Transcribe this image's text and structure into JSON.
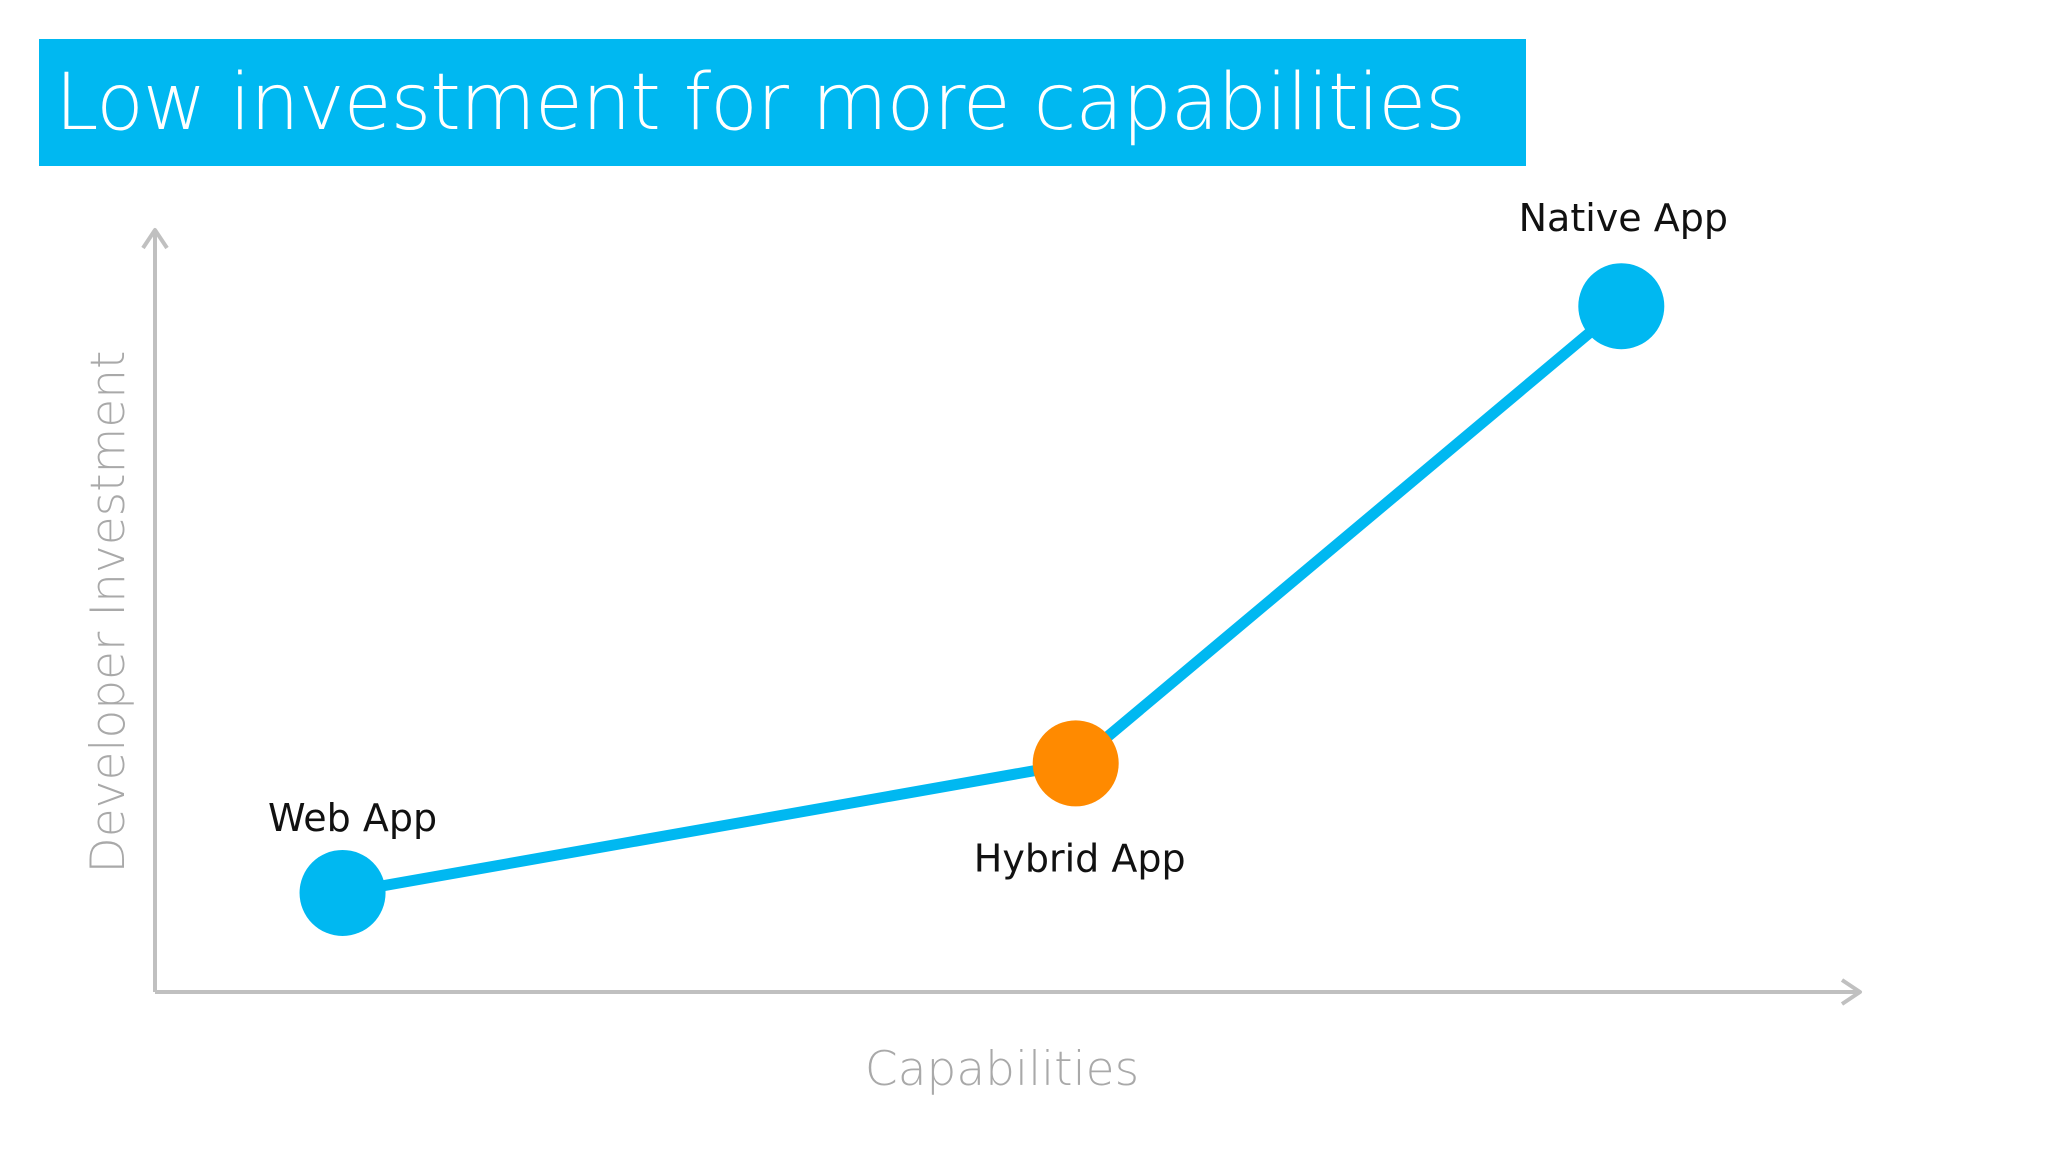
{
  "slide": {
    "title": "Low investment for more capabilities"
  },
  "chart_data": {
    "type": "line",
    "title": "Low investment for more capabilities",
    "xlabel": "Capabilities",
    "ylabel": "Developer Investment",
    "xlim": [
      0,
      10
    ],
    "ylim": [
      0,
      10
    ],
    "grid": false,
    "series": [
      {
        "points": [
          {
            "label": "Web App",
            "x": 1.1,
            "y": 1.3,
            "color": "#00b8f1"
          },
          {
            "label": "Hybrid App",
            "x": 5.4,
            "y": 3.0,
            "color": "#ff8a00"
          },
          {
            "label": "Native App",
            "x": 8.6,
            "y": 9.0,
            "color": "#00b8f1"
          }
        ],
        "line_color": "#00b8f1"
      }
    ],
    "axis_color": "#c0c0c0"
  }
}
